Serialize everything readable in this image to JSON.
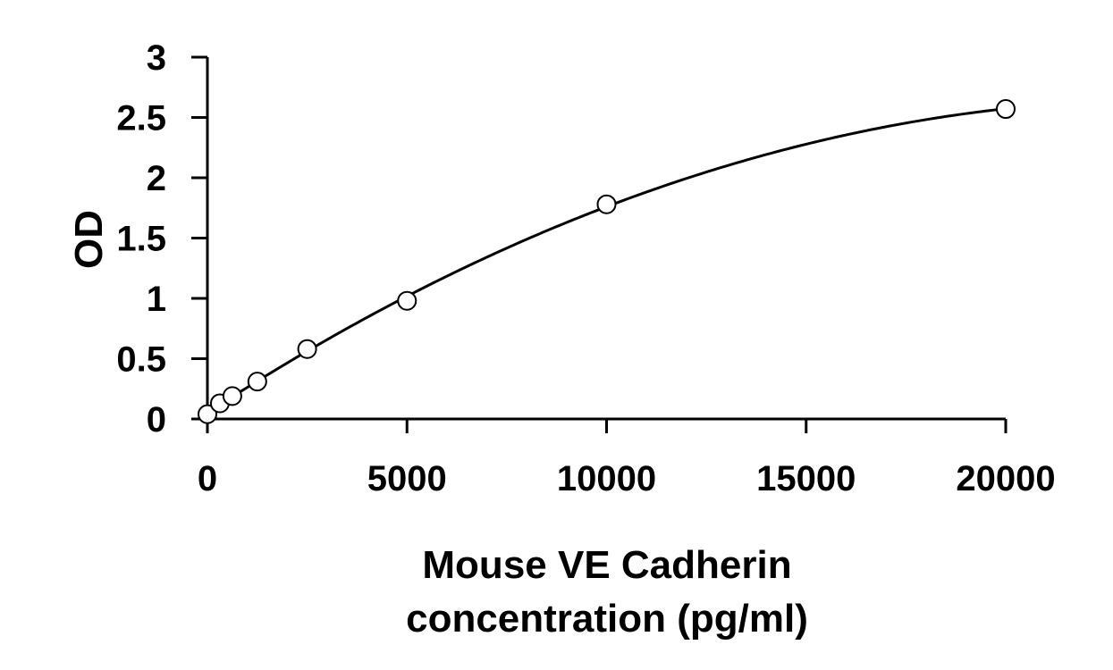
{
  "chart_data": {
    "type": "scatter",
    "title": "",
    "xlabel_lines": [
      "Mouse VE Cadherin",
      "concentration (pg/ml)"
    ],
    "ylabel": "OD",
    "xlim": [
      0,
      20000
    ],
    "ylim": [
      0,
      3
    ],
    "x_ticks": [
      0,
      5000,
      10000,
      15000,
      20000
    ],
    "y_ticks": [
      0,
      0.5,
      1,
      1.5,
      2,
      2.5,
      3
    ],
    "x_tick_labels": [
      "0",
      "5000",
      "10000",
      "15000",
      "20000"
    ],
    "y_tick_labels": [
      "0",
      "0.5",
      "1",
      "1.5",
      "2",
      "2.5",
      "3"
    ],
    "grid": false,
    "legend": "none",
    "series": [
      {
        "marker": "open-circle",
        "fit": "smooth-curve",
        "x": [
          0,
          312.5,
          625,
          1250,
          2500,
          5000,
          10000,
          20000
        ],
        "y": [
          0.04,
          0.13,
          0.19,
          0.31,
          0.58,
          0.98,
          1.78,
          2.57
        ]
      }
    ],
    "colors": {
      "line": "#000000",
      "marker_fill": "#ffffff",
      "background": "#ffffff"
    }
  }
}
